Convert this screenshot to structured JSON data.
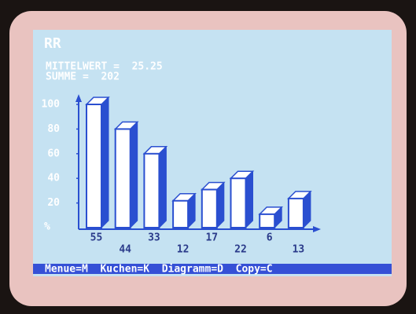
{
  "chart_data": {
    "type": "bar",
    "title": "RR",
    "subtitle": [
      "MITTELWERT =  25.25",
      "SUMME =  202"
    ],
    "ylabel": "%",
    "categories": [
      null,
      null,
      null,
      null,
      null,
      null,
      null,
      null
    ],
    "values": [
      55,
      44,
      33,
      12,
      17,
      22,
      6,
      13
    ],
    "color": "#2a4fd0",
    "ylim": [
      0,
      55
    ],
    "yticks": [
      {
        "value": 11,
        "label": "20"
      },
      {
        "value": 22,
        "label": "40"
      },
      {
        "value": 33,
        "label": "60"
      },
      {
        "value": 44,
        "label": "80"
      },
      {
        "value": 55,
        "label": "100"
      }
    ],
    "menu": "Menue=M  Kuchen=K  Diagramm=D  Copy=C"
  }
}
